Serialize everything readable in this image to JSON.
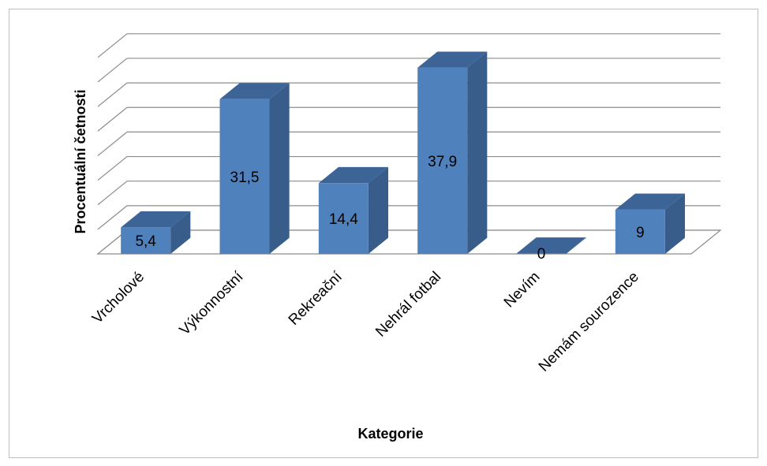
{
  "chart_data": {
    "type": "bar",
    "categories": [
      "Vrcholové",
      "Výkonnostní",
      "Rekreační",
      "Nehrál fotbal",
      "Nevím",
      "Nemám sourozence"
    ],
    "values": [
      5.4,
      31.5,
      14.4,
      37.9,
      0,
      9
    ],
    "data_labels": [
      "5,4",
      "31,5",
      "14,4",
      "37,9",
      "0",
      "9"
    ],
    "xlabel": "Kategorie",
    "ylabel": "Procentuální četnosti",
    "ylim": [
      0,
      40
    ],
    "grid": true,
    "style": "3d-column",
    "colors": {
      "bar_front": "#4f81bd",
      "bar_side": "#385d8a",
      "bar_top": "#3c6496",
      "grid": "#8c8c8c"
    }
  }
}
